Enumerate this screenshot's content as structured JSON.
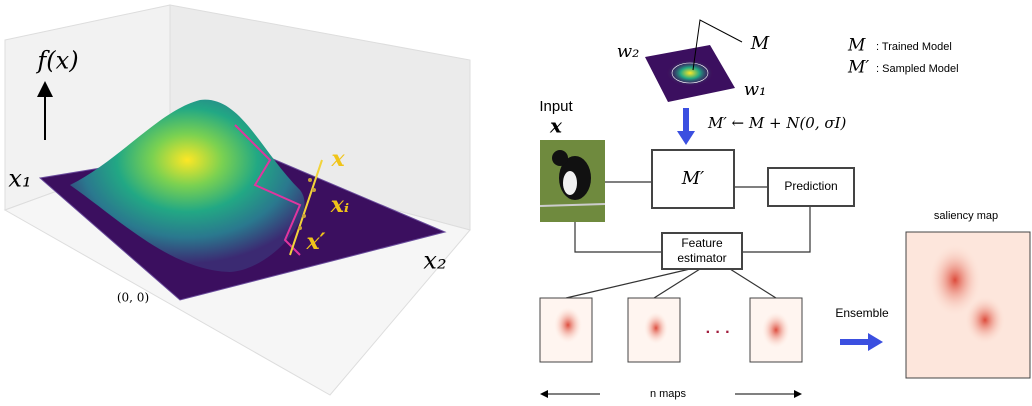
{
  "left": {
    "axis_label": "f(x)",
    "x1": "x₁",
    "x2": "x₂",
    "origin": "(0, 0)",
    "point_x": "x",
    "point_xi": "xᵢ",
    "point_xprime": "x′"
  },
  "right": {
    "w2": "w₂",
    "w1": "w₁",
    "model": "M",
    "legend": [
      {
        "symbol": "M",
        "text": ": Trained Model"
      },
      {
        "symbol": "M′",
        "text": ": Sampled Model"
      }
    ],
    "sampling": "M′ ← M + N(0, σI)",
    "input_label": "Input",
    "input_symbol": "x",
    "sampled_model": "M′",
    "prediction": "Prediction",
    "feature_estimator": [
      "Feature",
      "estimator"
    ],
    "ellipsis": "· · ·",
    "ensemble": "Ensemble",
    "saliency_title": "saliency map",
    "n_maps": "n maps"
  }
}
